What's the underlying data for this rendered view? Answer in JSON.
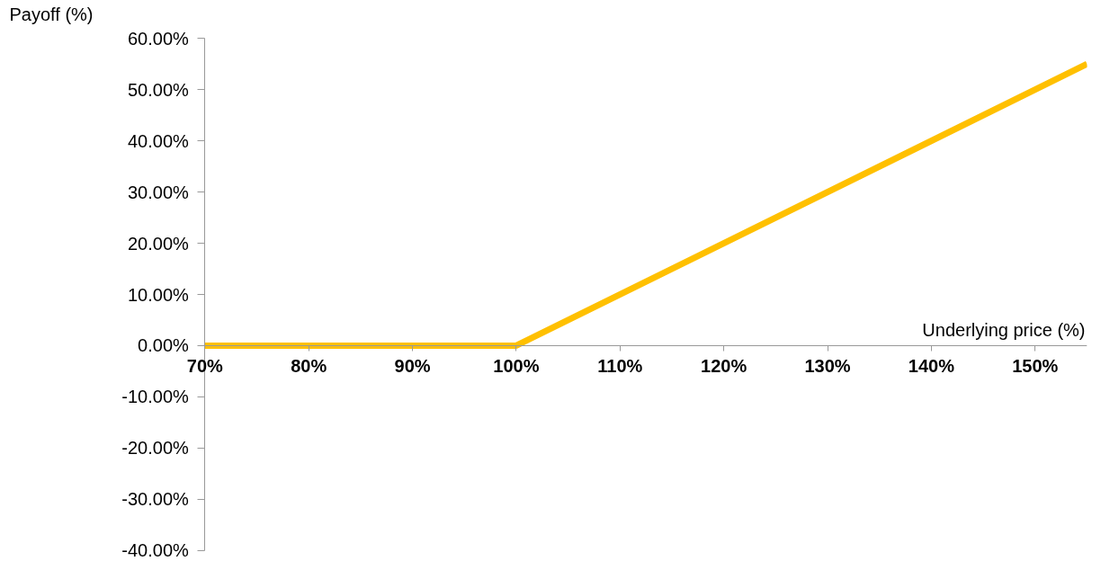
{
  "chart_data": {
    "type": "line",
    "xlabel": "Underlying price (%)",
    "ylabel": "Payoff (%)",
    "x": [
      70,
      100,
      155
    ],
    "series": [
      {
        "color": "#ffc000",
        "values": [
          0,
          0,
          55
        ]
      }
    ],
    "xlim": [
      70,
      155
    ],
    "ylim": [
      -40,
      60
    ],
    "xticks": [
      {
        "value": 70,
        "label": "70%"
      },
      {
        "value": 80,
        "label": "80%"
      },
      {
        "value": 90,
        "label": "90%"
      },
      {
        "value": 100,
        "label": "100%"
      },
      {
        "value": 110,
        "label": "110%"
      },
      {
        "value": 120,
        "label": "120%"
      },
      {
        "value": 130,
        "label": "130%"
      },
      {
        "value": 140,
        "label": "140%"
      },
      {
        "value": 150,
        "label": "150%"
      }
    ],
    "yticks": [
      {
        "value": -40,
        "label": "-40.00%"
      },
      {
        "value": -30,
        "label": "-30.00%"
      },
      {
        "value": -20,
        "label": "-20.00%"
      },
      {
        "value": -10,
        "label": "-10.00%"
      },
      {
        "value": 0,
        "label": "0.00%"
      },
      {
        "value": 10,
        "label": "10.00%"
      },
      {
        "value": 20,
        "label": "20.00%"
      },
      {
        "value": 30,
        "label": "30.00%"
      },
      {
        "value": 40,
        "label": "40.00%"
      },
      {
        "value": 50,
        "label": "50.00%"
      },
      {
        "value": 60,
        "label": "60.00%"
      }
    ],
    "grid": false,
    "marker": "none",
    "line_style": "solid"
  }
}
